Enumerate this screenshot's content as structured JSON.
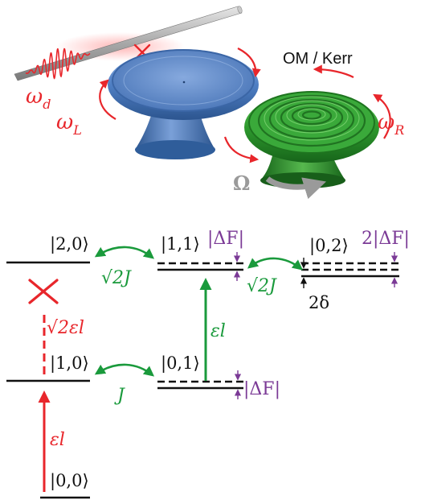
{
  "colors": {
    "red": "#e8262b",
    "green": "#1a9a3c",
    "purple": "#7b3a96",
    "black": "#111111",
    "gray": "#8a8a8a",
    "blue_resonator": "#4f7fc4",
    "green_resonator": "#2e9a2e"
  },
  "labels": {
    "omega_d": "ωd",
    "omega_L": "ωL",
    "omega_R": "ωR",
    "om_kerr": "OM / Kerr",
    "big_omega": "Ω"
  },
  "icons": {
    "left_resonator": "blue-disk-resonator-icon",
    "right_resonator": "green-rippled-resonator-icon",
    "fiber": "tapered-fiber-icon",
    "pulse": "driving-pulse-icon"
  },
  "levels": {
    "state_00": "|0,0⟩",
    "state_10": "|1,0⟩",
    "state_20": "|2,0⟩",
    "state_01": "|0,1⟩",
    "state_11": "|1,1⟩",
    "state_02": "|0,2⟩"
  },
  "couplings": {
    "j_lower": "J",
    "sqrt2j_left": "√2J",
    "sqrt2j_right": "√2J",
    "eps_drive_low": "εl",
    "eps_drive_mid": "εl",
    "sqrt2_eps": "√2εl"
  },
  "shifts": {
    "delta_f_top": "|ΔF|",
    "delta_f_bottom": "|ΔF|",
    "two_delta_f": "2|ΔF|",
    "two_delta": "2δ"
  }
}
